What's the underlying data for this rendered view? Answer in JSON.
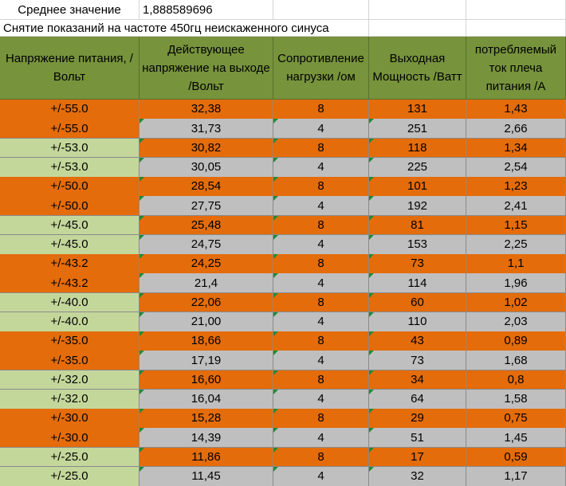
{
  "header": {
    "label": "Среднее значение",
    "value": "1,888589696"
  },
  "subtitle": "Снятие показаний на частоте 450гц неискаженного синуса",
  "table": {
    "columns": [
      "Напряжение питания, /Вольт",
      "Действующее напряжение на выходе /Вольт",
      "Сопротивление нагрузки /ом",
      "Выходная Мощность /Ватт",
      "потребляемый ток плеча питания /А"
    ],
    "rows": [
      [
        "+/-55.0",
        "32,38",
        "8",
        "131",
        "1,43"
      ],
      [
        "+/-55.0",
        "31,73",
        "4",
        "251",
        "2,66"
      ],
      [
        "+/-53.0",
        "30,82",
        "8",
        "118",
        "1,34"
      ],
      [
        "+/-53.0",
        "30,05",
        "4",
        "225",
        "2,54"
      ],
      [
        "+/-50.0",
        "28,54",
        "8",
        "101",
        "1,23"
      ],
      [
        "+/-50.0",
        "27,75",
        "4",
        "192",
        "2,41"
      ],
      [
        "+/-45.0",
        "25,48",
        "8",
        "81",
        "1,15"
      ],
      [
        "+/-45.0",
        "24,75",
        "4",
        "153",
        "2,25"
      ],
      [
        "+/-43.2",
        "24,25",
        "8",
        "73",
        "1,1"
      ],
      [
        "+/-43.2",
        "21,4",
        "4",
        "114",
        "1,96"
      ],
      [
        "+/-40.0",
        "22,06",
        "8",
        "60",
        "1,02"
      ],
      [
        "+/-40.0",
        "21,00",
        "4",
        "110",
        "2,03"
      ],
      [
        "+/-35.0",
        "18,66",
        "8",
        "43",
        "0,89"
      ],
      [
        "+/-35.0",
        "17,19",
        "4",
        "73",
        "1,68"
      ],
      [
        "+/-32.0",
        "16,60",
        "8",
        "34",
        "0,8"
      ],
      [
        "+/-32.0",
        "16,04",
        "4",
        "64",
        "1,58"
      ],
      [
        "+/-30.0",
        "15,28",
        "8",
        "29",
        "0,75"
      ],
      [
        "+/-30.0",
        "14,39",
        "4",
        "51",
        "1,45"
      ],
      [
        "+/-25.0",
        "11,86",
        "8",
        "17",
        "0,59"
      ],
      [
        "+/-25.0",
        "11,45",
        "4",
        "32",
        "1,17"
      ]
    ]
  }
}
